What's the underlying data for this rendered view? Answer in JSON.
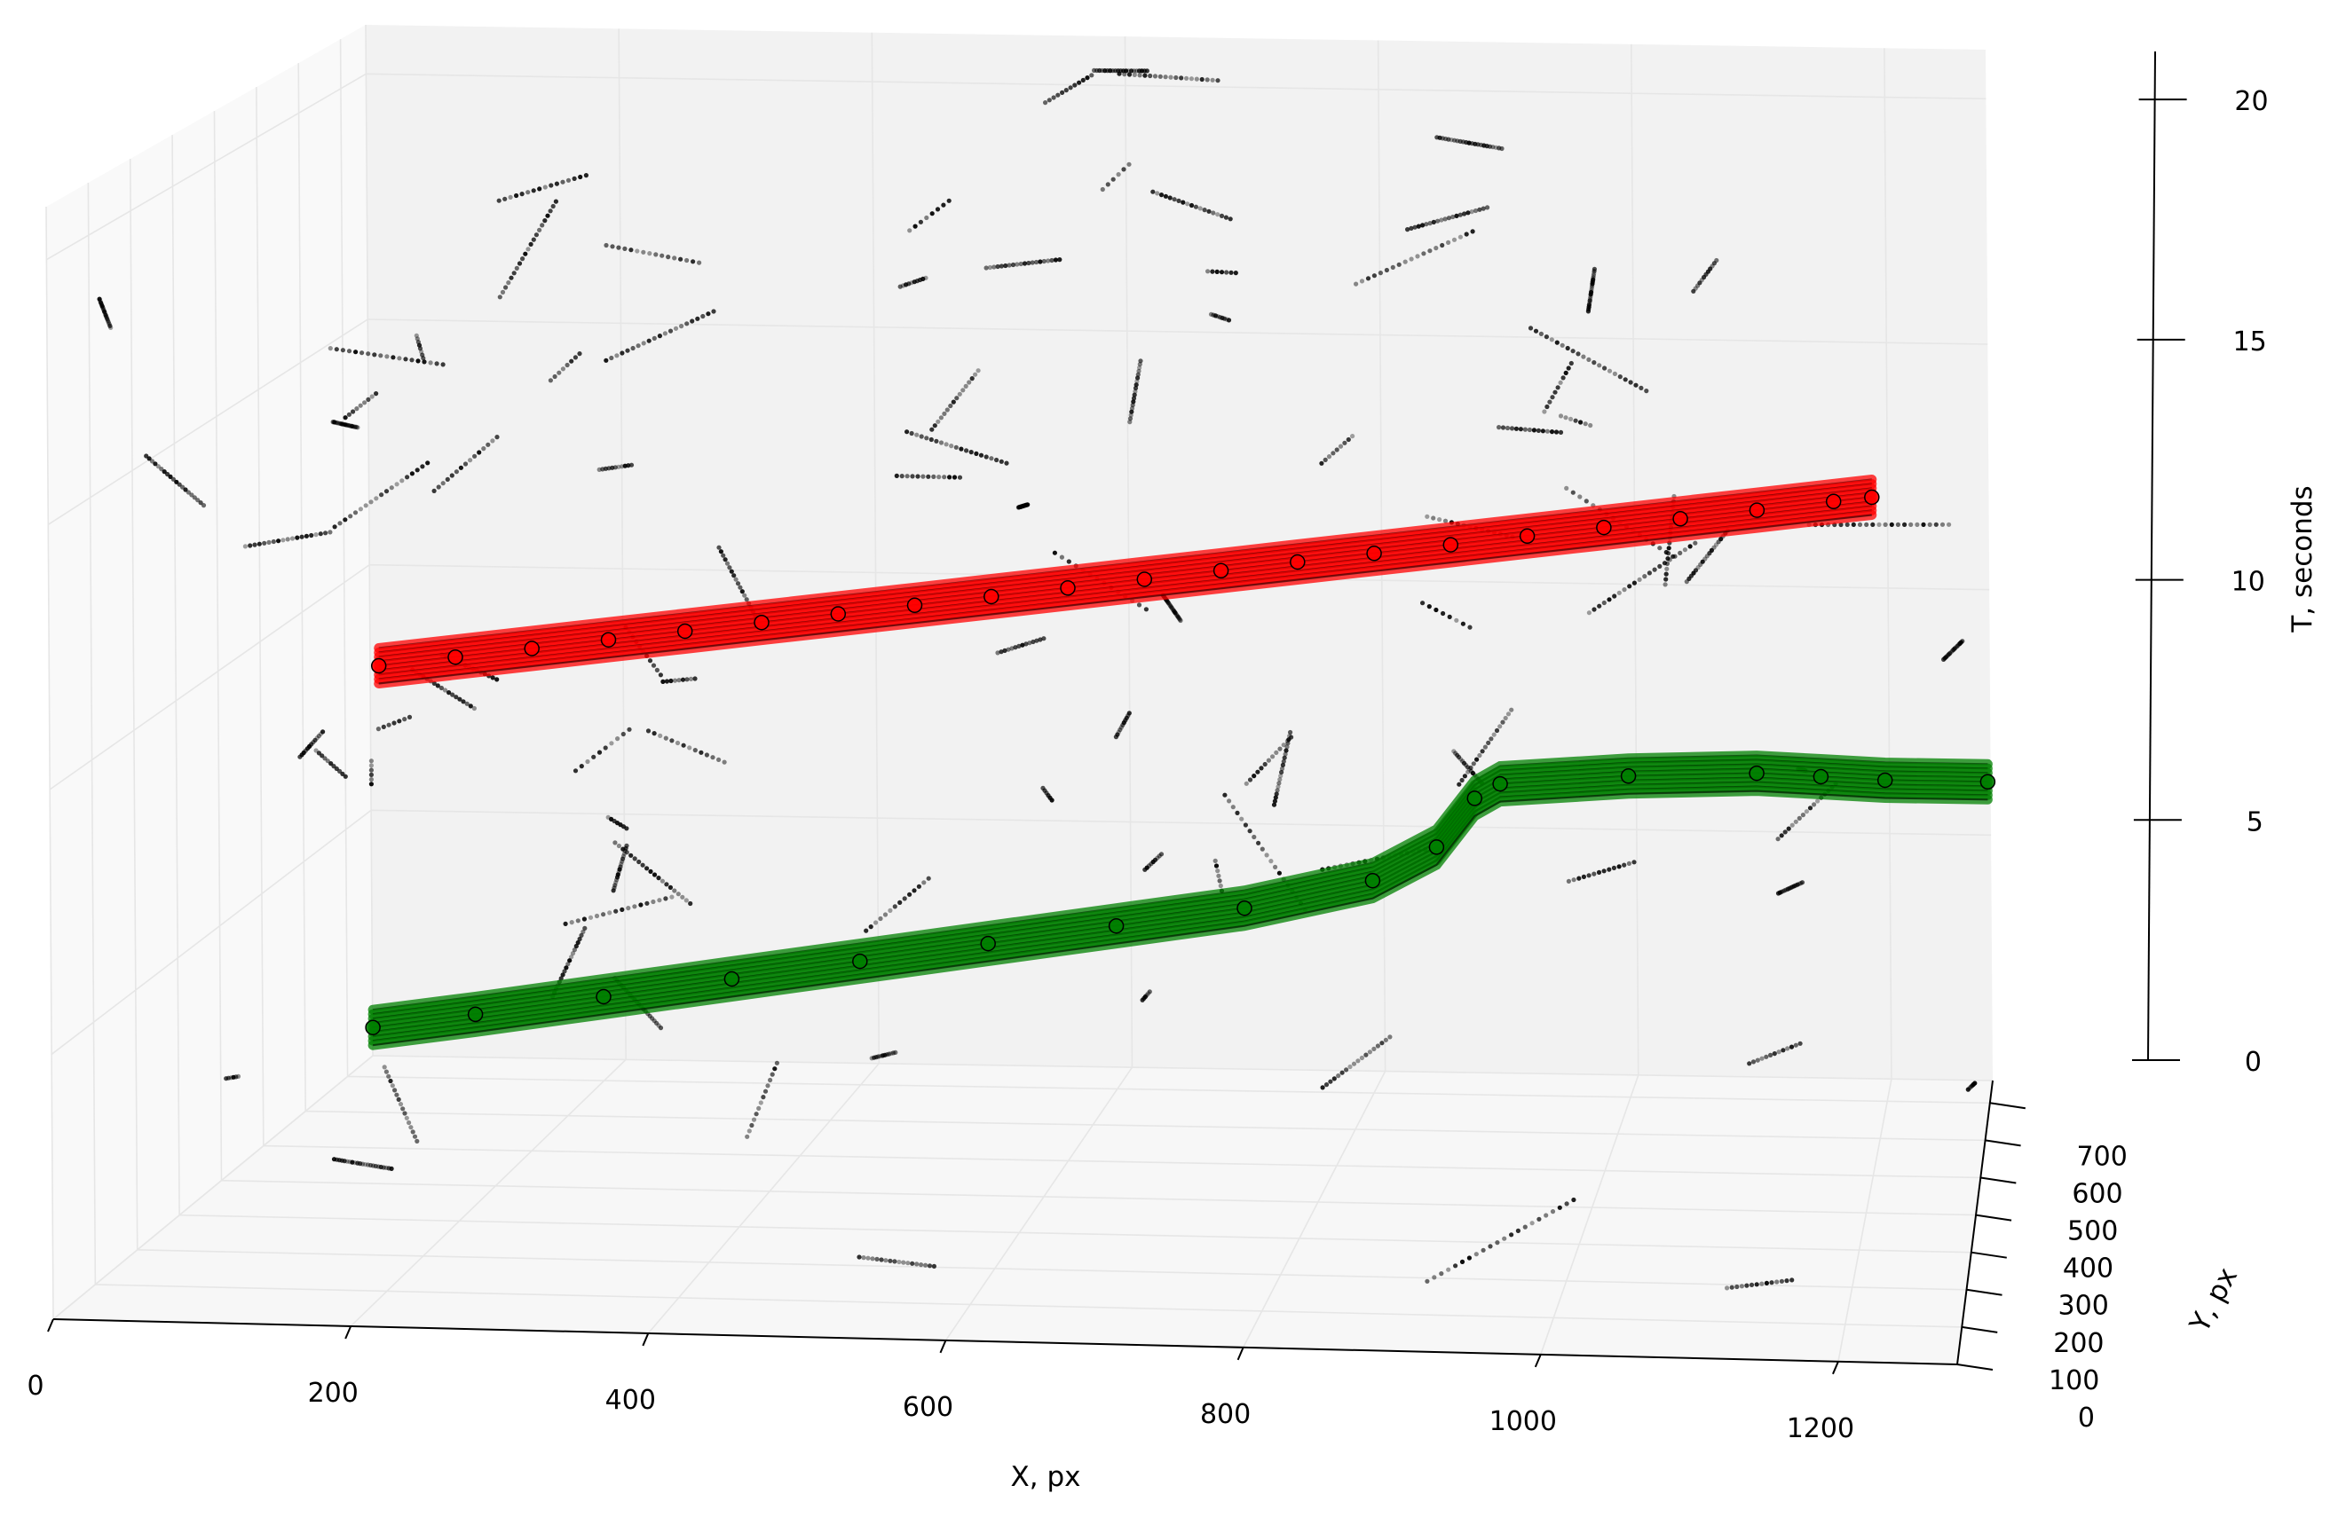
{
  "chart_data": {
    "type": "scatter",
    "title": "",
    "xlabel": "X, px",
    "ylabel": "Y, px",
    "zlabel": "T, seconds",
    "xlim": [
      0,
      1280
    ],
    "ylim": [
      0,
      760
    ],
    "zlim": [
      0,
      21
    ],
    "x_ticks": [
      0,
      200,
      400,
      600,
      800,
      1000,
      1200
    ],
    "y_ticks": [
      0,
      100,
      200,
      300,
      400,
      500,
      600,
      700
    ],
    "z_ticks": [
      0,
      5,
      10,
      15,
      20
    ],
    "grid": true,
    "colors": {
      "red_track": "#ff0000",
      "green_track": "#008000",
      "noise": "#000000",
      "pane": "#f2f2f2"
    },
    "series": [
      {
        "color": "red",
        "points": [
          [
            20,
            720,
            8.2
          ],
          [
            80,
            720,
            8.4
          ],
          [
            140,
            720,
            8.6
          ],
          [
            200,
            720,
            8.8
          ],
          [
            260,
            720,
            9.0
          ],
          [
            320,
            720,
            9.2
          ],
          [
            380,
            720,
            9.4
          ],
          [
            440,
            720,
            9.6
          ],
          [
            500,
            720,
            9.8
          ],
          [
            560,
            720,
            10.0
          ],
          [
            620,
            720,
            10.2
          ],
          [
            680,
            720,
            10.4
          ],
          [
            740,
            720,
            10.6
          ],
          [
            800,
            720,
            10.8
          ],
          [
            860,
            720,
            11.0
          ],
          [
            920,
            720,
            11.2
          ],
          [
            980,
            720,
            11.4
          ],
          [
            1040,
            720,
            11.6
          ],
          [
            1100,
            720,
            11.8
          ],
          [
            1160,
            720,
            12.0
          ],
          [
            1190,
            720,
            12.1
          ]
        ]
      },
      {
        "color": "green",
        "points": [
          [
            20,
            700,
            1.0
          ],
          [
            100,
            700,
            1.3
          ],
          [
            200,
            700,
            1.7
          ],
          [
            300,
            700,
            2.1
          ],
          [
            400,
            700,
            2.5
          ],
          [
            500,
            700,
            2.9
          ],
          [
            600,
            700,
            3.3
          ],
          [
            700,
            700,
            3.7
          ],
          [
            800,
            700,
            4.3
          ],
          [
            850,
            700,
            5.0
          ],
          [
            880,
            700,
            6.0
          ],
          [
            900,
            700,
            6.3
          ],
          [
            1000,
            700,
            6.5
          ],
          [
            1100,
            700,
            6.6
          ],
          [
            1150,
            700,
            6.55
          ],
          [
            1200,
            700,
            6.5
          ],
          [
            1280,
            700,
            6.5
          ]
        ]
      }
    ]
  }
}
